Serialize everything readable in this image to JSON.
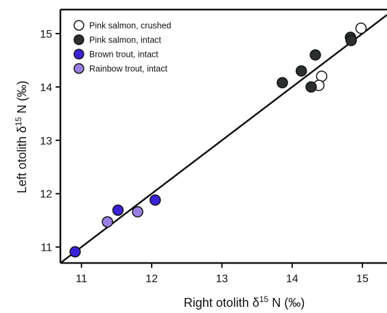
{
  "chart_data": {
    "type": "scatter",
    "title": "",
    "xlabel": {
      "prefix": "Right otolith  ",
      "delta": "δ",
      "sup": "15",
      "suffix": " N (‰)"
    },
    "ylabel": {
      "prefix": "Left otolith ",
      "delta": "δ",
      "sup": "15",
      "suffix": " N (‰)"
    },
    "xlim": [
      10.7,
      15.35
    ],
    "ylim": [
      10.7,
      15.45
    ],
    "xticks": [
      11,
      12,
      13,
      14,
      15
    ],
    "yticks": [
      11,
      12,
      13,
      14,
      15
    ],
    "grid": false,
    "legend_position": "top-left",
    "reference_line": {
      "x": [
        10.7,
        15.35
      ],
      "y": [
        10.7,
        15.35
      ]
    },
    "series": [
      {
        "name": "Pink salmon, crushed",
        "fill": "#ffffff",
        "points": [
          [
            14.98,
            15.1
          ],
          [
            14.42,
            14.2
          ],
          [
            14.38,
            14.03
          ]
        ]
      },
      {
        "name": "Pink salmon, intact",
        "fill": "#2b302e",
        "points": [
          [
            14.83,
            14.93
          ],
          [
            14.84,
            14.87
          ],
          [
            14.33,
            14.6
          ],
          [
            14.13,
            14.3
          ],
          [
            13.86,
            14.08
          ],
          [
            14.27,
            14.0
          ]
        ]
      },
      {
        "name": "Brown trout, intact",
        "fill": "#3a23d6",
        "points": [
          [
            10.91,
            10.91
          ],
          [
            11.52,
            11.69
          ],
          [
            12.05,
            11.88
          ]
        ]
      },
      {
        "name": "Rainbow trout, intact",
        "fill": "#9a7fe0",
        "points": [
          [
            11.37,
            11.47
          ],
          [
            11.8,
            11.66
          ]
        ]
      }
    ]
  }
}
